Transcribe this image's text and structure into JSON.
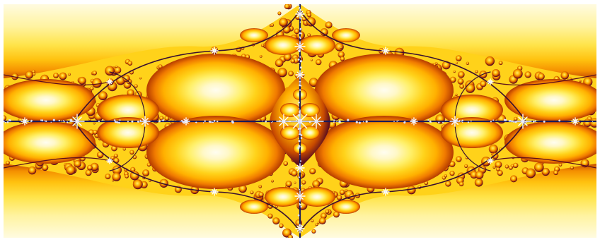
{
  "image": {
    "subject": "fractal",
    "palette": {
      "background": "#ffffff",
      "pale": "#fff8c8",
      "light_yellow": "#fff06a",
      "yellow": "#ffd21a",
      "amber": "#ffb000",
      "orange": "#f07a00",
      "dark_orange": "#b43a00",
      "maroon": "#5a0d1e",
      "navy": "#1a1a5a",
      "highlight": "#ffffff"
    }
  }
}
